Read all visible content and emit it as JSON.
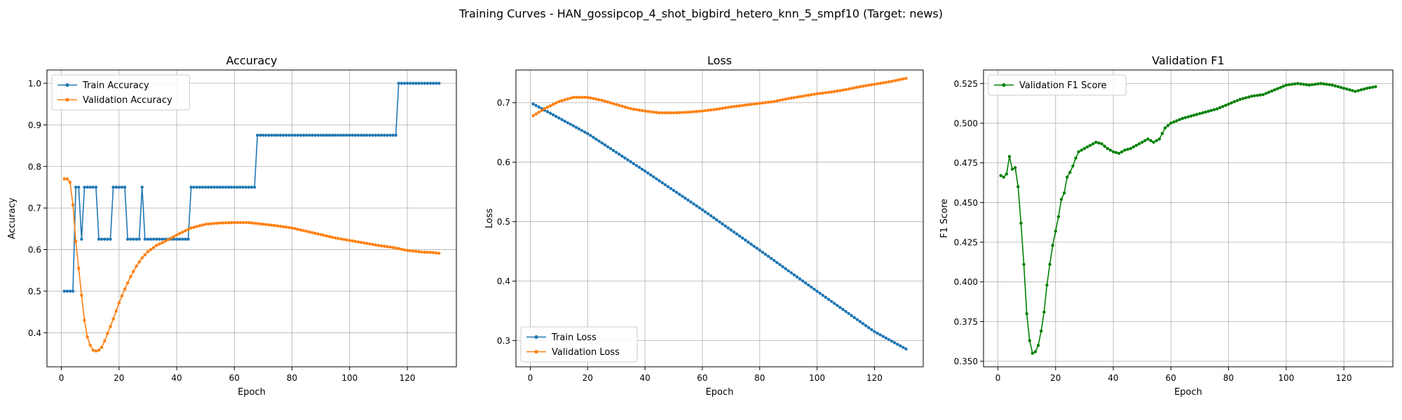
{
  "figure": {
    "title": "Training Curves - HAN_gossipcop_4_shot_bigbird_hetero_knn_5_smpf10 (Target: news)"
  },
  "colors": {
    "blue": "#1f77b4",
    "orange": "#ff7f0e",
    "green": "#008000",
    "grid": "#b0b0b0"
  },
  "chart_data": [
    {
      "type": "line",
      "title": "Accuracy",
      "xlabel": "Epoch",
      "ylabel": "Accuracy",
      "xlim": [
        -5,
        137
      ],
      "ylim": [
        0.318,
        1.032
      ],
      "xticks": [
        0,
        20,
        40,
        60,
        80,
        100,
        120
      ],
      "yticks": [
        0.4,
        0.5,
        0.6,
        0.7,
        0.8,
        0.9,
        1.0
      ],
      "ytick_labels": [
        "0.4",
        "0.5",
        "0.6",
        "0.7",
        "0.8",
        "0.9",
        "1.0"
      ],
      "grid": true,
      "legend": "upper left",
      "series": [
        {
          "name": "Train Accuracy",
          "color": "#1f77b4",
          "steps": [
            [
              1,
              0.5
            ],
            [
              5,
              0.75
            ],
            [
              7,
              0.625
            ],
            [
              8,
              0.75
            ],
            [
              13,
              0.625
            ],
            [
              18,
              0.75
            ],
            [
              23,
              0.625
            ],
            [
              28,
              0.75
            ],
            [
              29,
              0.625
            ],
            [
              45,
              0.75
            ],
            [
              68,
              0.875
            ],
            [
              117,
              1.0
            ],
            [
              131,
              1.0
            ]
          ]
        },
        {
          "name": "Validation Accuracy",
          "color": "#ff7f0e",
          "keypoints": [
            [
              1,
              0.77
            ],
            [
              2,
              0.77
            ],
            [
              3,
              0.762
            ],
            [
              4,
              0.708
            ],
            [
              5,
              0.62
            ],
            [
              6,
              0.555
            ],
            [
              7,
              0.49
            ],
            [
              8,
              0.43
            ],
            [
              9,
              0.39
            ],
            [
              10,
              0.37
            ],
            [
              11,
              0.358
            ],
            [
              12,
              0.356
            ],
            [
              13,
              0.358
            ],
            [
              14,
              0.365
            ],
            [
              15,
              0.38
            ],
            [
              16,
              0.398
            ],
            [
              17,
              0.415
            ],
            [
              18,
              0.433
            ],
            [
              19,
              0.452
            ],
            [
              20,
              0.472
            ],
            [
              22,
              0.505
            ],
            [
              24,
              0.535
            ],
            [
              26,
              0.56
            ],
            [
              28,
              0.58
            ],
            [
              30,
              0.595
            ],
            [
              33,
              0.61
            ],
            [
              36,
              0.62
            ],
            [
              40,
              0.635
            ],
            [
              45,
              0.652
            ],
            [
              50,
              0.661
            ],
            [
              55,
              0.664
            ],
            [
              60,
              0.665
            ],
            [
              65,
              0.665
            ],
            [
              70,
              0.661
            ],
            [
              75,
              0.657
            ],
            [
              80,
              0.652
            ],
            [
              85,
              0.644
            ],
            [
              90,
              0.636
            ],
            [
              95,
              0.628
            ],
            [
              100,
              0.622
            ],
            [
              105,
              0.616
            ],
            [
              110,
              0.61
            ],
            [
              115,
              0.605
            ],
            [
              120,
              0.598
            ],
            [
              125,
              0.594
            ],
            [
              129,
              0.593
            ],
            [
              131,
              0.591
            ]
          ]
        }
      ]
    },
    {
      "type": "line",
      "title": "Loss",
      "xlabel": "Epoch",
      "ylabel": "Loss",
      "xlim": [
        -5,
        137
      ],
      "ylim": [
        0.256,
        0.755
      ],
      "xticks": [
        0,
        20,
        40,
        60,
        80,
        100,
        120
      ],
      "yticks": [
        0.3,
        0.4,
        0.5,
        0.6,
        0.7
      ],
      "ytick_labels": [
        "0.3",
        "0.4",
        "0.5",
        "0.6",
        "0.7"
      ],
      "grid": true,
      "legend": "lower left",
      "series": [
        {
          "name": "Train Loss",
          "color": "#1f77b4",
          "keypoints": [
            [
              1,
              0.698
            ],
            [
              20,
              0.648
            ],
            [
              40,
              0.585
            ],
            [
              60,
              0.52
            ],
            [
              80,
              0.452
            ],
            [
              100,
              0.383
            ],
            [
              120,
              0.315
            ],
            [
              131,
              0.286
            ]
          ]
        },
        {
          "name": "Validation Loss",
          "color": "#ff7f0e",
          "keypoints": [
            [
              1,
              0.678
            ],
            [
              5,
              0.69
            ],
            [
              10,
              0.702
            ],
            [
              15,
              0.709
            ],
            [
              20,
              0.709
            ],
            [
              25,
              0.704
            ],
            [
              30,
              0.697
            ],
            [
              35,
              0.69
            ],
            [
              40,
              0.686
            ],
            [
              45,
              0.683
            ],
            [
              50,
              0.683
            ],
            [
              55,
              0.684
            ],
            [
              60,
              0.686
            ],
            [
              65,
              0.689
            ],
            [
              70,
              0.693
            ],
            [
              75,
              0.696
            ],
            [
              80,
              0.699
            ],
            [
              85,
              0.702
            ],
            [
              90,
              0.707
            ],
            [
              95,
              0.711
            ],
            [
              100,
              0.715
            ],
            [
              105,
              0.718
            ],
            [
              110,
              0.722
            ],
            [
              115,
              0.727
            ],
            [
              120,
              0.731
            ],
            [
              125,
              0.735
            ],
            [
              131,
              0.741
            ]
          ]
        }
      ]
    },
    {
      "type": "line",
      "title": "Validation F1",
      "xlabel": "Epoch",
      "ylabel": "F1 Score",
      "xlim": [
        -5,
        137
      ],
      "ylim": [
        0.3465,
        0.5335
      ],
      "xticks": [
        0,
        20,
        40,
        60,
        80,
        100,
        120
      ],
      "yticks": [
        0.35,
        0.375,
        0.4,
        0.425,
        0.45,
        0.475,
        0.5,
        0.525
      ],
      "ytick_labels": [
        "0.350",
        "0.375",
        "0.400",
        "0.425",
        "0.450",
        "0.475",
        "0.500",
        "0.525"
      ],
      "grid": true,
      "legend": "upper left",
      "series": [
        {
          "name": "Validation F1 Score",
          "color": "#008000",
          "keypoints": [
            [
              1,
              0.467
            ],
            [
              2,
              0.466
            ],
            [
              3,
              0.468
            ],
            [
              4,
              0.479
            ],
            [
              5,
              0.471
            ],
            [
              6,
              0.472
            ],
            [
              7,
              0.46
            ],
            [
              8,
              0.437
            ],
            [
              9,
              0.411
            ],
            [
              10,
              0.38
            ],
            [
              11,
              0.363
            ],
            [
              12,
              0.355
            ],
            [
              13,
              0.356
            ],
            [
              14,
              0.36
            ],
            [
              15,
              0.369
            ],
            [
              16,
              0.381
            ],
            [
              17,
              0.398
            ],
            [
              18,
              0.411
            ],
            [
              19,
              0.423
            ],
            [
              20,
              0.432
            ],
            [
              21,
              0.441
            ],
            [
              22,
              0.452
            ],
            [
              23,
              0.456
            ],
            [
              24,
              0.466
            ],
            [
              25,
              0.469
            ],
            [
              26,
              0.473
            ],
            [
              27,
              0.478
            ],
            [
              28,
              0.482
            ],
            [
              30,
              0.484
            ],
            [
              32,
              0.486
            ],
            [
              34,
              0.488
            ],
            [
              36,
              0.487
            ],
            [
              38,
              0.484
            ],
            [
              40,
              0.482
            ],
            [
              42,
              0.481
            ],
            [
              44,
              0.483
            ],
            [
              46,
              0.484
            ],
            [
              48,
              0.486
            ],
            [
              50,
              0.488
            ],
            [
              52,
              0.49
            ],
            [
              54,
              0.488
            ],
            [
              56,
              0.49
            ],
            [
              58,
              0.497
            ],
            [
              60,
              0.5
            ],
            [
              64,
              0.503
            ],
            [
              68,
              0.505
            ],
            [
              72,
              0.507
            ],
            [
              76,
              0.509
            ],
            [
              80,
              0.512
            ],
            [
              84,
              0.515
            ],
            [
              88,
              0.517
            ],
            [
              92,
              0.518
            ],
            [
              96,
              0.521
            ],
            [
              100,
              0.524
            ],
            [
              104,
              0.525
            ],
            [
              108,
              0.524
            ],
            [
              112,
              0.525
            ],
            [
              116,
              0.524
            ],
            [
              120,
              0.522
            ],
            [
              124,
              0.52
            ],
            [
              126,
              0.521
            ],
            [
              128,
              0.522
            ],
            [
              131,
              0.523
            ]
          ]
        }
      ]
    }
  ]
}
